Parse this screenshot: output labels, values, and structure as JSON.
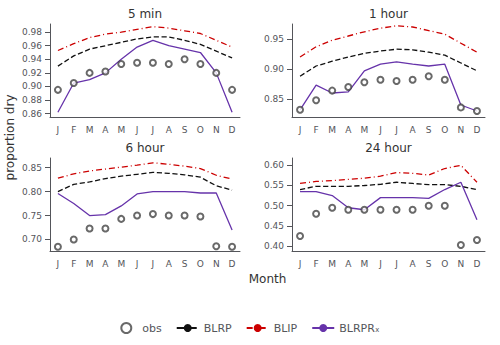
{
  "chart_data": [
    {
      "type": "line",
      "title": "5 min",
      "xlabel": "Month",
      "ylabel": "proportion dry",
      "categories": [
        "J",
        "F",
        "M",
        "A",
        "M",
        "J",
        "J",
        "A",
        "S",
        "O",
        "N",
        "D"
      ],
      "ylim": [
        0.855,
        0.992
      ],
      "yticks": [
        0.86,
        0.88,
        {
          "value": 0.9,
          "label": "0.90"
        },
        0.92,
        0.94,
        0.96,
        0.98
      ],
      "grid": false,
      "legend": "bottom",
      "series": [
        {
          "name": "obs",
          "type": "scatter",
          "marker": "open circle",
          "color": "#444444",
          "values": [
            0.895,
            0.905,
            0.92,
            0.922,
            0.933,
            0.935,
            0.935,
            0.933,
            0.94,
            0.933,
            0.92,
            0.895
          ]
        },
        {
          "name": "BLRP",
          "type": "line",
          "line_style": "dashed",
          "color": "#111111",
          "values": [
            0.93,
            0.945,
            0.955,
            0.96,
            0.965,
            0.97,
            0.973,
            0.973,
            0.968,
            0.962,
            0.952,
            0.942
          ]
        },
        {
          "name": "BLIP",
          "type": "line",
          "line_style": "dashdot",
          "color": "#cc0000",
          "values": [
            0.953,
            0.963,
            0.972,
            0.977,
            0.98,
            0.984,
            0.988,
            0.986,
            0.982,
            0.978,
            0.968,
            0.958
          ]
        },
        {
          "name": "BLRPRₓ",
          "type": "line",
          "line_style": "solid",
          "color": "#6633aa",
          "values": [
            0.862,
            0.905,
            0.91,
            0.92,
            0.94,
            0.958,
            0.968,
            0.96,
            0.955,
            0.95,
            0.92,
            0.862
          ]
        }
      ]
    },
    {
      "type": "line",
      "title": "1 hour",
      "xlabel": "Month",
      "ylabel": "proportion dry",
      "categories": [
        "J",
        "F",
        "M",
        "A",
        "M",
        "J",
        "J",
        "A",
        "S",
        "O",
        "N",
        "D"
      ],
      "ylim": [
        0.82,
        0.975
      ],
      "yticks": [
        0.85,
        {
          "value": 0.9,
          "label": "0.90"
        },
        0.95
      ],
      "grid": false,
      "legend": "bottom",
      "series": [
        {
          "name": "obs",
          "type": "scatter",
          "marker": "open circle",
          "color": "#444444",
          "values": [
            0.832,
            0.848,
            0.864,
            0.87,
            0.878,
            0.882,
            0.88,
            0.882,
            0.888,
            0.882,
            0.836,
            0.83
          ]
        },
        {
          "name": "BLRP",
          "type": "line",
          "line_style": "dashed",
          "color": "#111111",
          "values": [
            0.888,
            0.905,
            0.913,
            0.92,
            0.926,
            0.93,
            0.933,
            0.932,
            0.928,
            0.923,
            0.91,
            0.897
          ]
        },
        {
          "name": "BLIP",
          "type": "line",
          "line_style": "dashdot",
          "color": "#cc0000",
          "values": [
            0.92,
            0.937,
            0.948,
            0.955,
            0.962,
            0.968,
            0.972,
            0.97,
            0.964,
            0.958,
            0.943,
            0.928
          ]
        },
        {
          "name": "BLRPRₓ",
          "type": "line",
          "line_style": "solid",
          "color": "#6633aa",
          "values": [
            0.832,
            0.873,
            0.86,
            0.862,
            0.897,
            0.908,
            0.912,
            0.908,
            0.905,
            0.908,
            0.84,
            0.83
          ]
        }
      ]
    },
    {
      "type": "line",
      "title": "6 hour",
      "xlabel": "Month",
      "ylabel": "proportion dry",
      "categories": [
        "J",
        "F",
        "M",
        "A",
        "M",
        "J",
        "J",
        "A",
        "S",
        "O",
        "N",
        "D"
      ],
      "ylim": [
        0.676,
        0.87
      ],
      "yticks": [
        {
          "value": 0.7,
          "label": "0.70"
        },
        0.75,
        {
          "value": 0.8,
          "label": "0.80"
        },
        0.85
      ],
      "grid": false,
      "legend": "bottom",
      "series": [
        {
          "name": "obs",
          "type": "scatter",
          "marker": "open circle",
          "color": "#444444",
          "values": [
            0.685,
            0.7,
            0.723,
            0.723,
            0.743,
            0.75,
            0.753,
            0.75,
            0.75,
            0.748,
            0.686,
            0.685
          ]
        },
        {
          "name": "BLRP",
          "type": "line",
          "line_style": "dashed",
          "color": "#111111",
          "values": [
            0.8,
            0.815,
            0.82,
            0.827,
            0.832,
            0.836,
            0.84,
            0.838,
            0.835,
            0.83,
            0.812,
            0.803
          ]
        },
        {
          "name": "BLIP",
          "type": "line",
          "line_style": "dashdot",
          "color": "#cc0000",
          "values": [
            0.828,
            0.837,
            0.843,
            0.847,
            0.851,
            0.855,
            0.86,
            0.857,
            0.853,
            0.848,
            0.834,
            0.826
          ]
        },
        {
          "name": "BLRPRₓ",
          "type": "line",
          "line_style": "solid",
          "color": "#6633aa",
          "values": [
            0.796,
            0.775,
            0.75,
            0.752,
            0.77,
            0.795,
            0.8,
            0.8,
            0.8,
            0.797,
            0.797,
            0.72
          ]
        }
      ]
    },
    {
      "type": "line",
      "title": "24 hour",
      "xlabel": "Month",
      "ylabel": "proportion dry",
      "categories": [
        "J",
        "F",
        "M",
        "A",
        "M",
        "J",
        "J",
        "A",
        "S",
        "O",
        "N",
        "D"
      ],
      "ylim": [
        0.388,
        0.618
      ],
      "yticks": [
        {
          "value": 0.4,
          "label": "0.40"
        },
        0.45,
        {
          "value": 0.5,
          "label": "0.50"
        },
        0.55,
        {
          "value": 0.6,
          "label": "0.60"
        }
      ],
      "grid": false,
      "legend": "bottom",
      "series": [
        {
          "name": "obs",
          "type": "scatter",
          "marker": "open circle",
          "color": "#444444",
          "values": [
            0.425,
            0.48,
            0.495,
            0.49,
            0.49,
            0.49,
            0.49,
            0.49,
            0.5,
            0.5,
            0.403,
            0.415
          ]
        },
        {
          "name": "BLRP",
          "type": "line",
          "line_style": "dashed",
          "color": "#111111",
          "values": [
            0.54,
            0.548,
            0.548,
            0.548,
            0.55,
            0.553,
            0.558,
            0.555,
            0.552,
            0.552,
            0.548,
            0.54
          ]
        },
        {
          "name": "BLIP",
          "type": "line",
          "line_style": "dashdot",
          "color": "#cc0000",
          "values": [
            0.555,
            0.56,
            0.562,
            0.565,
            0.568,
            0.573,
            0.582,
            0.58,
            0.576,
            0.592,
            0.6,
            0.558
          ]
        },
        {
          "name": "BLRPRₓ",
          "type": "line",
          "line_style": "solid",
          "color": "#6633aa",
          "values": [
            0.535,
            0.535,
            0.525,
            0.495,
            0.49,
            0.52,
            0.52,
            0.52,
            0.518,
            0.54,
            0.558,
            0.465
          ]
        }
      ]
    }
  ]
}
